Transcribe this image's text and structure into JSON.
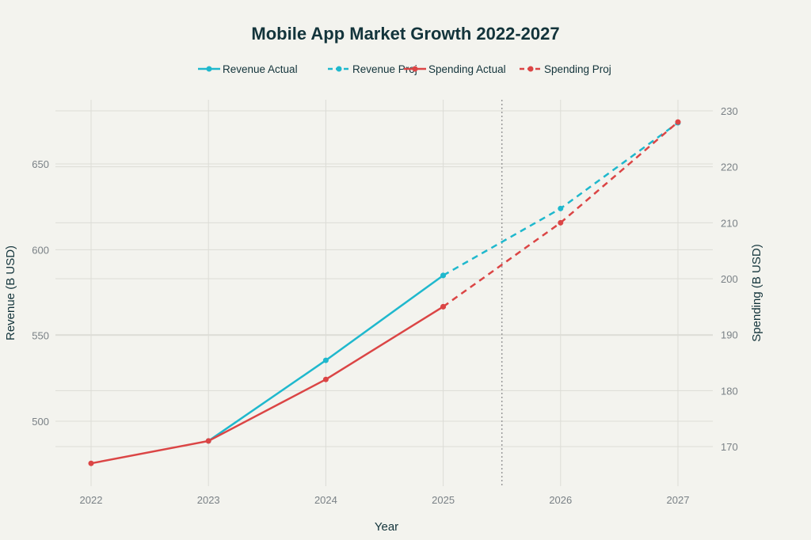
{
  "chart_data": {
    "type": "line",
    "title": "Mobile App Market Growth 2022-2027",
    "xlabel": "Year",
    "ylabel": "Revenue (B USD)",
    "y2label": "Spending (B USD)",
    "x": [
      2022,
      2023,
      2024,
      2025,
      2026,
      2027
    ],
    "x_ticks": [
      "2022",
      "2023",
      "2024",
      "2025",
      "2026",
      "2027"
    ],
    "ylim": [
      470,
      680
    ],
    "y_ticks": [
      500,
      550,
      600,
      650
    ],
    "y2lim": [
      164,
      231
    ],
    "y2_ticks": [
      170,
      180,
      190,
      200,
      210,
      220,
      230
    ],
    "grid": true,
    "legend_position": "top-center",
    "projection_divider_x": 2025.5,
    "series": [
      {
        "name": "Revenue Actual",
        "axis": "left",
        "style": "solid",
        "color": "#1fb8cd",
        "x": [
          2023,
          2024,
          2025
        ],
        "values": [
          488.5,
          535.5,
          585
        ]
      },
      {
        "name": "Revenue Proj",
        "axis": "left",
        "style": "dashed",
        "color": "#1fb8cd",
        "x": [
          2025,
          2026,
          2027
        ],
        "values": [
          585,
          624,
          674
        ]
      },
      {
        "name": "Spending Actual",
        "axis": "right",
        "style": "solid",
        "color": "#db4545",
        "x": [
          2022,
          2023,
          2024,
          2025
        ],
        "values": [
          167,
          171,
          182,
          195
        ]
      },
      {
        "name": "Spending Proj",
        "axis": "right",
        "style": "dashed",
        "color": "#db4545",
        "x": [
          2025,
          2026,
          2027
        ],
        "values": [
          195,
          210,
          228
        ]
      }
    ]
  }
}
